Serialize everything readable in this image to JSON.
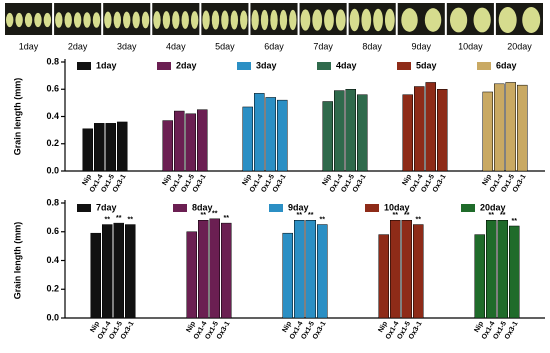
{
  "photo_strip": {
    "labels": [
      "1day",
      "2day",
      "3day",
      "4day",
      "5day",
      "6day",
      "7day",
      "8day",
      "9day",
      "10day",
      "20day"
    ]
  },
  "chart_data": [
    {
      "type": "bar",
      "y_label": "Grain length (mm)",
      "categories": [
        "Nip",
        "Ox1-4",
        "Ox1-5",
        "Ox3-1"
      ],
      "ylim": [
        0,
        0.8
      ],
      "yticks": [
        {
          "value": 0,
          "label": "0.0"
        },
        0.2,
        0.4,
        0.6,
        0.8
      ],
      "legend_position": "top",
      "series": [
        {
          "name": "1day",
          "color": "#111111",
          "values": [
            0.31,
            0.35,
            0.35,
            0.36
          ]
        },
        {
          "name": "2day",
          "color": "#6b1f52",
          "values": [
            0.37,
            0.44,
            0.42,
            0.45
          ]
        },
        {
          "name": "3day",
          "color": "#2b8fc4",
          "values": [
            0.47,
            0.57,
            0.54,
            0.52
          ]
        },
        {
          "name": "4day",
          "color": "#2f6a4c",
          "values": [
            0.51,
            0.59,
            0.6,
            0.56
          ]
        },
        {
          "name": "5day",
          "color": "#8e2b18",
          "values": [
            0.56,
            0.62,
            0.65,
            0.6
          ]
        },
        {
          "name": "6day",
          "color": "#c9a963",
          "values": [
            0.58,
            0.64,
            0.65,
            0.63
          ]
        }
      ]
    },
    {
      "type": "bar",
      "y_label": "Grain length (mm)",
      "categories": [
        "Nip",
        "Ox1-4",
        "Ox1-5",
        "Ox3-1"
      ],
      "ylim": [
        0,
        0.8
      ],
      "yticks": [
        {
          "value": 0,
          "label": "0.0"
        },
        0.2,
        0.4,
        0.6,
        0.8
      ],
      "legend_position": "top",
      "series": [
        {
          "name": "7day",
          "color": "#111111",
          "values": [
            0.59,
            0.65,
            0.66,
            0.65
          ],
          "significance": [
            null,
            "**",
            "**",
            "**"
          ]
        },
        {
          "name": "8day",
          "color": "#6b1f52",
          "values": [
            0.6,
            0.68,
            0.69,
            0.66
          ],
          "significance": [
            null,
            "**",
            "**",
            "**"
          ]
        },
        {
          "name": "9day",
          "color": "#2b8fc4",
          "values": [
            0.59,
            0.68,
            0.68,
            0.65
          ],
          "significance": [
            null,
            "**",
            "**",
            "**"
          ]
        },
        {
          "name": "10day",
          "color": "#8e2b18",
          "values": [
            0.58,
            0.68,
            0.68,
            0.65
          ],
          "significance": [
            null,
            "**",
            "**",
            "**"
          ]
        },
        {
          "name": "20day",
          "color": "#1f6b2a",
          "values": [
            0.58,
            0.68,
            0.68,
            0.64
          ],
          "significance": [
            null,
            "**",
            "**",
            "**"
          ]
        }
      ]
    }
  ]
}
